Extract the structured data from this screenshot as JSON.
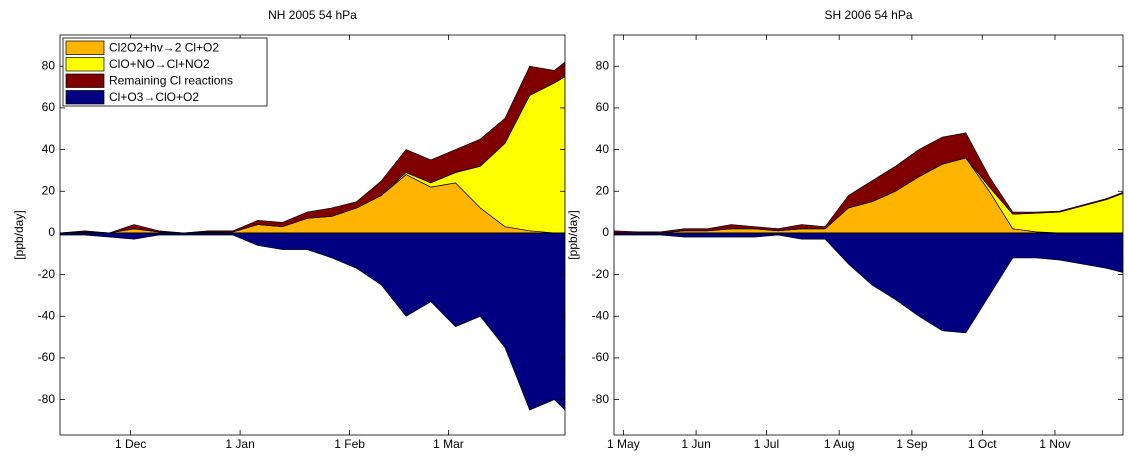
{
  "chart_data": [
    {
      "type": "stacked-area",
      "title": "NH 2005 54 hPa",
      "y_label": "[ppb/day]",
      "x": [
        10,
        17,
        24,
        31,
        38,
        45,
        52,
        59,
        66,
        73,
        80,
        87,
        94,
        101,
        108,
        115,
        122,
        129,
        136,
        143,
        150,
        153
      ],
      "series": [
        {
          "name": "Cl2O2+hv→2 Cl+O2",
          "color": "#ffb400",
          "values": [
            0,
            0.5,
            0,
            2,
            0.5,
            0,
            0.5,
            0.5,
            4,
            3,
            7,
            8,
            12,
            18,
            28,
            22,
            24,
            12,
            3,
            1,
            0,
            0
          ]
        },
        {
          "name": "ClO+NO→Cl+NO2",
          "color": "#ffff00",
          "values": [
            0,
            0,
            0,
            0,
            0,
            0,
            0,
            0,
            0,
            0,
            0,
            0,
            0,
            0,
            1,
            2,
            5,
            20,
            40,
            65,
            72,
            75
          ]
        },
        {
          "name": "Remaining Cl reactions",
          "color": "#800000",
          "values": [
            0,
            0.5,
            0,
            2,
            0.5,
            0,
            0.5,
            0.5,
            2,
            2,
            3,
            4,
            3,
            7,
            11,
            11,
            11,
            13,
            12,
            14,
            6,
            7
          ]
        },
        {
          "name": "Cl+O3→ClO+O2",
          "color": "#000080",
          "values": [
            -1,
            -1,
            -2,
            -3,
            -1,
            -1,
            -1,
            -1,
            -6,
            -8,
            -8,
            -12,
            -17,
            -25,
            -40,
            -33,
            -45,
            -40,
            -55,
            -85,
            -80,
            -85
          ]
        }
      ],
      "xlim": [
        10,
        153
      ],
      "xticks": [
        {
          "value": 30,
          "label": "1 Dec"
        },
        {
          "value": 61,
          "label": "1 Jan"
        },
        {
          "value": 92,
          "label": "1 Feb"
        },
        {
          "value": 120,
          "label": "1 Mar"
        }
      ],
      "ylim": [
        -97,
        95
      ],
      "yticks": [
        -80,
        -60,
        -40,
        -20,
        0,
        20,
        40,
        60,
        80
      ],
      "legend": "upper left"
    },
    {
      "type": "stacked-area",
      "title": "SH 2006 54 hPa",
      "y_label": "[ppb/day]",
      "x": [
        -4,
        6,
        16,
        26,
        36,
        46,
        56,
        66,
        76,
        86,
        96,
        106,
        116,
        126,
        136,
        146,
        156,
        166,
        176,
        186,
        196,
        206,
        213
      ],
      "series": [
        {
          "color": "#ffb400",
          "values": [
            0,
            0,
            0,
            1,
            1,
            2,
            2,
            1,
            2,
            2,
            12,
            15,
            20,
            27,
            33,
            36,
            20,
            2,
            0.5,
            0,
            0,
            0,
            0
          ]
        },
        {
          "color": "#ffff00",
          "values": [
            0,
            0,
            0,
            0,
            0,
            0,
            0,
            0,
            0,
            0,
            0,
            0,
            0,
            0,
            0,
            0,
            2,
            7,
            9,
            10,
            13,
            16,
            19
          ]
        },
        {
          "color": "#800000",
          "values": [
            1,
            0.5,
            0.5,
            1,
            1,
            2,
            1,
            1,
            2,
            1,
            6,
            10,
            12,
            13,
            13,
            12,
            5,
            1,
            0.5,
            0.5,
            0.5,
            0.5,
            0.5
          ]
        },
        {
          "color": "#000080",
          "values": [
            -1,
            -1,
            -1,
            -2,
            -2,
            -2,
            -2,
            -1,
            -3,
            -3,
            -15,
            -25,
            -32,
            -40,
            -47,
            -48,
            -30,
            -12,
            -12,
            -13,
            -15,
            -17,
            -19
          ]
        }
      ],
      "xlim": [
        -4,
        213
      ],
      "xticks": [
        {
          "value": 0,
          "label": "1 May"
        },
        {
          "value": 31,
          "label": "1 Jun"
        },
        {
          "value": 61,
          "label": "1 Jul"
        },
        {
          "value": 92,
          "label": "1 Aug"
        },
        {
          "value": 123,
          "label": "1 Sep"
        },
        {
          "value": 153,
          "label": "1 Oct"
        },
        {
          "value": 184,
          "label": "1 Nov"
        }
      ],
      "ylim": [
        -97,
        95
      ],
      "yticks": [
        -80,
        -60,
        -40,
        -20,
        0,
        20,
        40,
        60,
        80
      ]
    }
  ]
}
